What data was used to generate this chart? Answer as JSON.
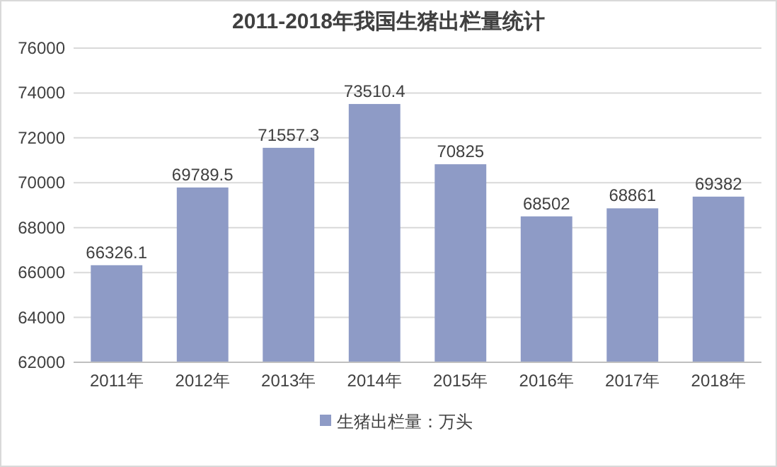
{
  "chart_data": {
    "type": "bar",
    "title": "2011-2018年我国生猪出栏量统计",
    "categories": [
      "2011年",
      "2012年",
      "2013年",
      "2014年",
      "2015年",
      "2016年",
      "2017年",
      "2018年"
    ],
    "series": [
      {
        "name": "生猪出栏量：万头",
        "color": "#8e9bc6",
        "values": [
          66326.1,
          69789.5,
          71557.3,
          73510.4,
          70825,
          68502,
          68861,
          69382
        ]
      }
    ],
    "ylim": [
      62000,
      76000
    ],
    "yticks": [
      62000,
      64000,
      66000,
      68000,
      70000,
      72000,
      74000,
      76000
    ],
    "grid": "y",
    "legend": "bottom",
    "data_labels": true
  }
}
